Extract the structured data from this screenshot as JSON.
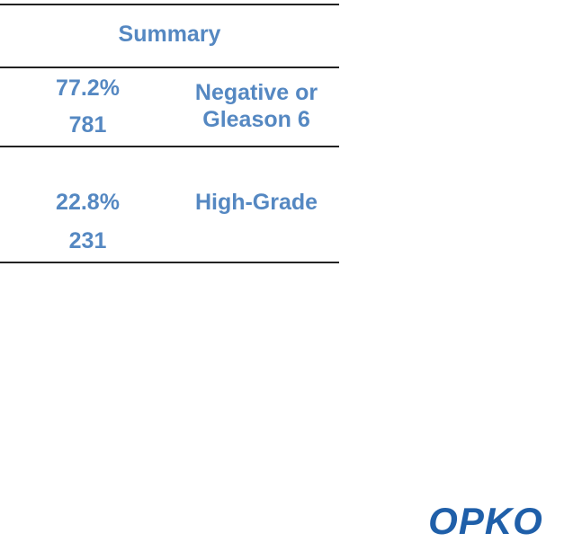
{
  "header": {
    "title": "Summary"
  },
  "table": {
    "rows": [
      {
        "percent": "77.2%",
        "count": "781",
        "label": "Negative or Gleason 6"
      },
      {
        "percent": "22.8%",
        "count": "231",
        "label": "High-Grade"
      }
    ]
  },
  "logo": {
    "text": "OPKO"
  }
}
